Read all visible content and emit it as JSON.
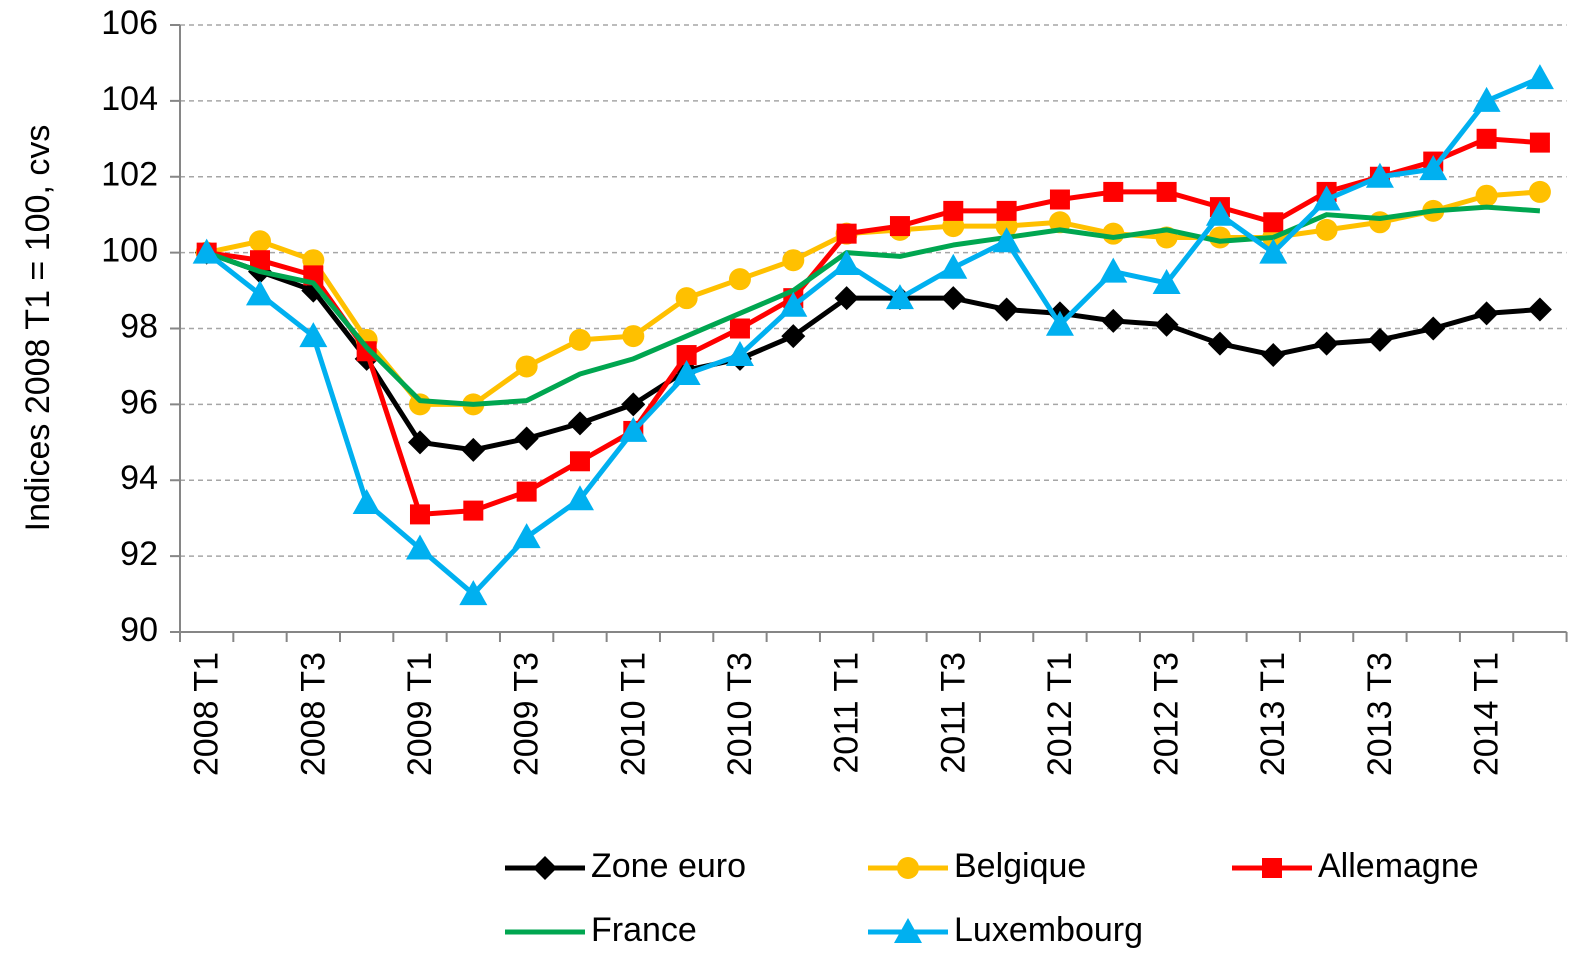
{
  "chart_data": {
    "type": "line",
    "y_label": "Indices 2008 T1 = 100, cvs",
    "categories": [
      "2008 T1",
      null,
      "2008 T3",
      null,
      "2009 T1",
      null,
      "2009 T3",
      null,
      "2010 T1",
      null,
      "2010 T3",
      null,
      "2011 T1",
      null,
      "2011 T3",
      null,
      "2012 T1",
      null,
      "2012 T3",
      null,
      "2013 T1",
      null,
      "2013 T3",
      null,
      "2014 T1",
      null
    ],
    "ylim": [
      90,
      106
    ],
    "yticks": [
      90,
      92,
      94,
      96,
      98,
      100,
      102,
      104,
      106
    ],
    "grid": true,
    "legend": "bottom",
    "series": [
      {
        "name": "Zone euro",
        "color": "#000000",
        "marker": "diamond",
        "values": [
          100,
          99.5,
          99.0,
          97.2,
          95.0,
          94.8,
          95.1,
          95.5,
          96.0,
          96.9,
          97.2,
          97.8,
          98.8,
          98.8,
          98.8,
          98.5,
          98.4,
          98.2,
          98.1,
          97.6,
          97.3,
          97.6,
          97.7,
          98.0,
          98.4,
          98.5
        ]
      },
      {
        "name": "Belgique",
        "color": "#ffc000",
        "marker": "circle",
        "values": [
          100,
          100.3,
          99.8,
          97.7,
          96.0,
          96.0,
          97.0,
          97.7,
          97.8,
          98.8,
          99.3,
          99.8,
          100.5,
          100.6,
          100.7,
          100.7,
          100.8,
          100.5,
          100.4,
          100.4,
          100.4,
          100.6,
          100.8,
          101.1,
          101.5,
          101.6
        ]
      },
      {
        "name": "Allemagne",
        "color": "#ff0000",
        "marker": "square",
        "values": [
          100,
          99.8,
          99.4,
          97.4,
          93.1,
          93.2,
          93.7,
          94.5,
          95.3,
          97.3,
          98.0,
          98.8,
          100.5,
          100.7,
          101.1,
          101.1,
          101.4,
          101.6,
          101.6,
          101.2,
          100.8,
          101.6,
          102.0,
          102.4,
          103.0,
          102.9
        ]
      },
      {
        "name": "France",
        "color": "#00a650",
        "marker": "none",
        "values": [
          100,
          99.5,
          99.2,
          97.5,
          96.1,
          96.0,
          96.1,
          96.8,
          97.2,
          97.8,
          98.4,
          99.0,
          100.0,
          99.9,
          100.2,
          100.4,
          100.6,
          100.4,
          100.6,
          100.3,
          100.4,
          101.0,
          100.9,
          101.1,
          101.2,
          101.1
        ]
      },
      {
        "name": "Luxembourg",
        "color": "#00b0f0",
        "marker": "triangle",
        "values": [
          100,
          98.9,
          97.8,
          93.4,
          92.2,
          91.0,
          92.5,
          93.5,
          95.3,
          96.8,
          97.3,
          98.6,
          99.7,
          98.8,
          99.6,
          100.3,
          98.1,
          99.5,
          99.2,
          101.0,
          100.0,
          101.4,
          102.0,
          102.2,
          104.0,
          104.6
        ]
      }
    ]
  }
}
